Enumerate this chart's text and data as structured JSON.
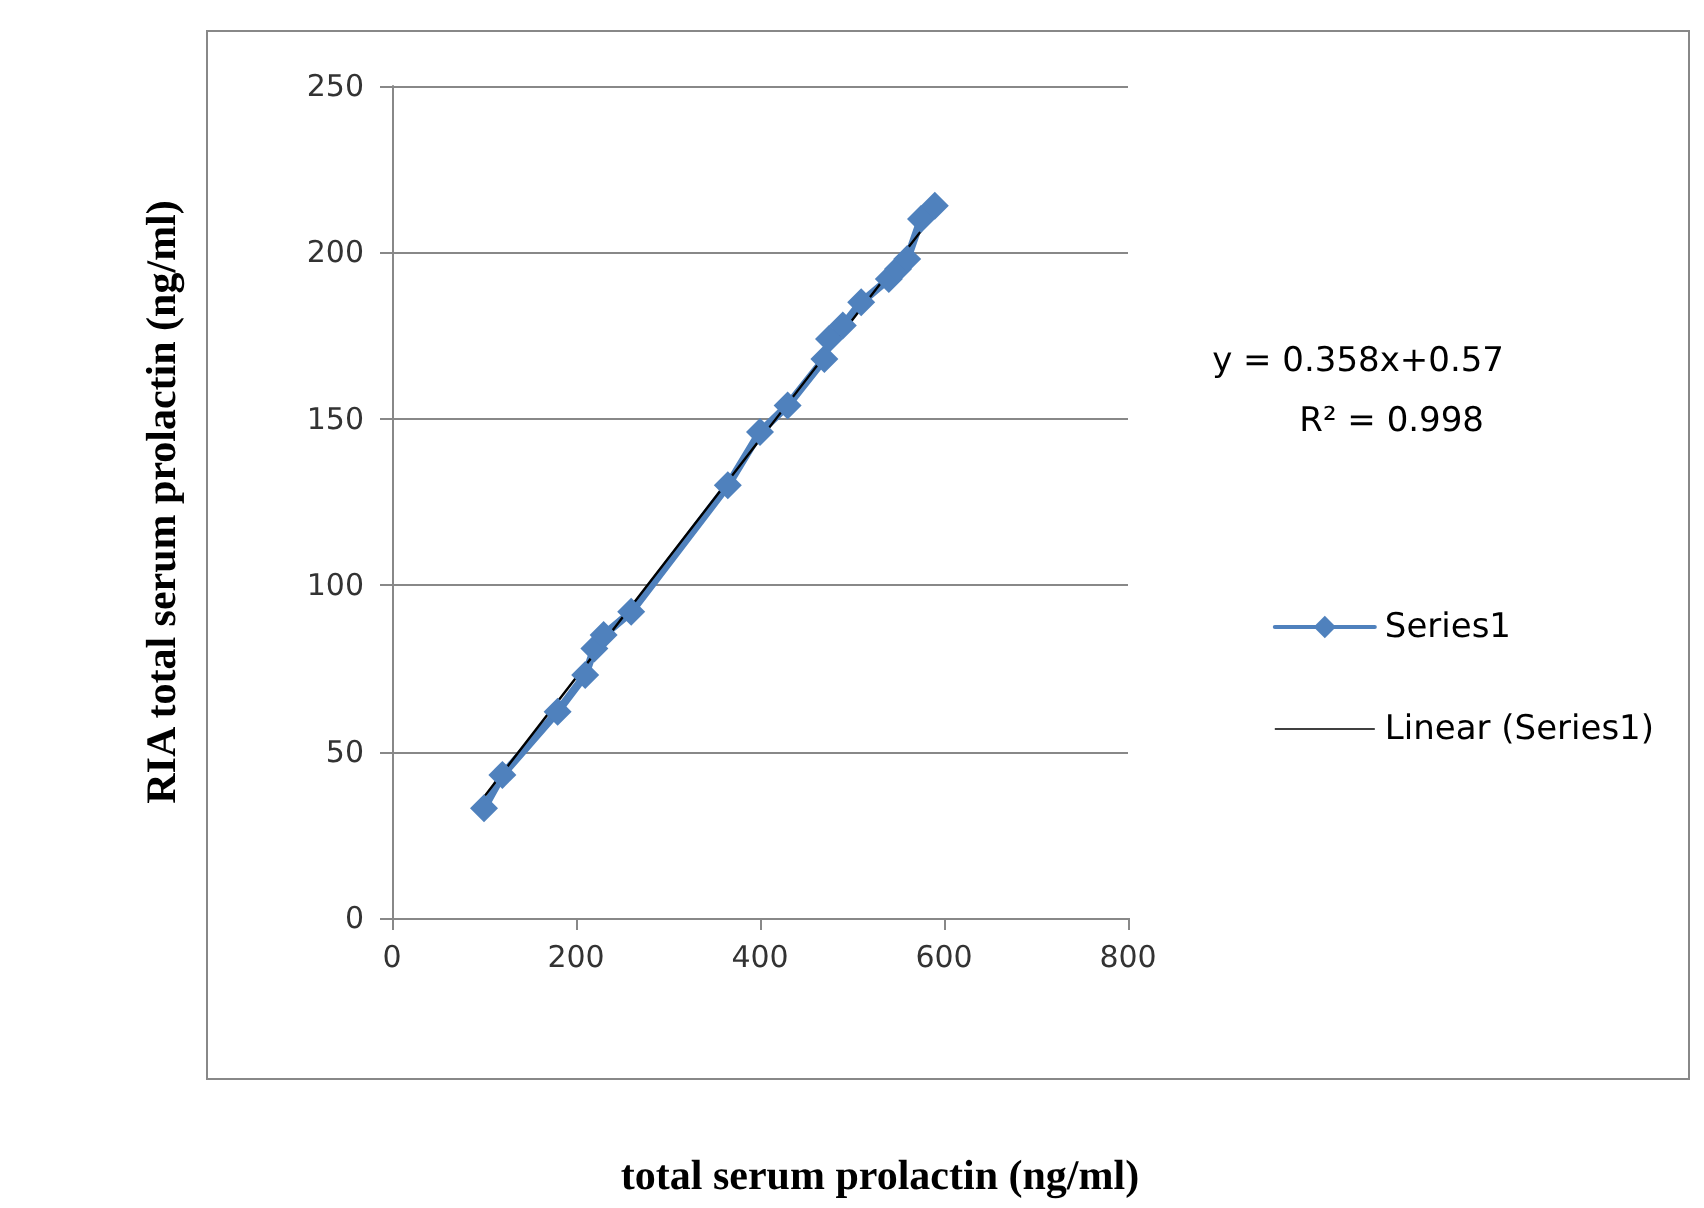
{
  "chart_data": {
    "type": "line",
    "xlabel": "total serum prolactin (ng/ml)",
    "ylabel": "RIA total serum prolactin (ng/ml)",
    "annotations": [
      "y = 0.358x+0.57",
      "R² = 0.998"
    ],
    "series": [
      {
        "name": "Series1",
        "color": "#4f81bd",
        "marker": "diamond",
        "x": [
          100,
          120,
          180,
          210,
          220,
          230,
          260,
          365,
          400,
          430,
          470,
          475,
          490,
          510,
          540,
          550,
          560,
          575,
          590
        ],
        "values": [
          33,
          43,
          62,
          73,
          81,
          85,
          92,
          130,
          146,
          154,
          168,
          174,
          178,
          185,
          192,
          195,
          198,
          210,
          214
        ]
      },
      {
        "name": "Linear (Series1)",
        "color": "#000000",
        "marker": "none",
        "x": [
          100,
          590
        ],
        "values": [
          36.4,
          211.8
        ]
      }
    ],
    "xlim": [
      0,
      800
    ],
    "xticks": [
      0,
      200,
      400,
      600,
      800
    ],
    "ylim": [
      0,
      250
    ],
    "yticks": [
      0,
      50,
      100,
      150,
      200,
      250
    ],
    "grid": "y",
    "legend": "right"
  }
}
